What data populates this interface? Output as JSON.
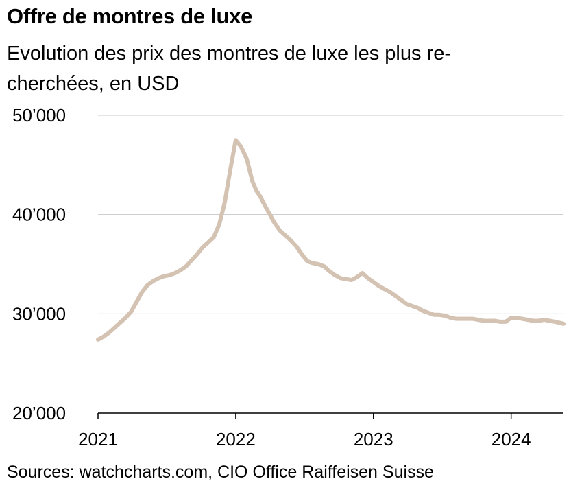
{
  "title": "Offre de montres de luxe",
  "subtitle": "Evolution des prix des montres de luxe les plus re-cherchées, en USD",
  "source": "Sources: watchcharts.com, CIO Office Raiffeisen Suisse",
  "colors": {
    "line": "#d4c3b3",
    "grid": "#c8c8c8",
    "axis": "#000000"
  },
  "chart_data": {
    "type": "line",
    "title": "Offre de montres de luxe",
    "subtitle": "Evolution des prix des montres de luxe les plus re-cherchées, en USD",
    "xlabel": "",
    "ylabel": "",
    "x_ticks": [
      "2021",
      "2022",
      "2023",
      "2024"
    ],
    "y_ticks": [
      "20’000",
      "30’000",
      "40’000",
      "50’000"
    ],
    "xlim": [
      2021.0,
      2024.38
    ],
    "ylim": [
      20000,
      50000
    ],
    "grid": "horizontal",
    "legend": "none",
    "series": [
      {
        "x": [
          2021.0,
          2021.04,
          2021.08,
          2021.12,
          2021.16,
          2021.2,
          2021.24,
          2021.28,
          2021.32,
          2021.36,
          2021.4,
          2021.44,
          2021.48,
          2021.52,
          2021.56,
          2021.6,
          2021.64,
          2021.68,
          2021.72,
          2021.76,
          2021.8,
          2021.84,
          2021.88,
          2021.92,
          2021.96,
          2022.0,
          2022.04,
          2022.08,
          2022.12,
          2022.15,
          2022.18,
          2022.2,
          2022.24,
          2022.28,
          2022.32,
          2022.36,
          2022.4,
          2022.44,
          2022.48,
          2022.52,
          2022.56,
          2022.6,
          2022.64,
          2022.68,
          2022.72,
          2022.76,
          2022.8,
          2022.84,
          2022.88,
          2022.92,
          2022.96,
          2023.0,
          2023.04,
          2023.08,
          2023.12,
          2023.16,
          2023.2,
          2023.24,
          2023.28,
          2023.32,
          2023.36,
          2023.4,
          2023.44,
          2023.48,
          2023.52,
          2023.56,
          2023.6,
          2023.64,
          2023.68,
          2023.72,
          2023.76,
          2023.8,
          2023.84,
          2023.88,
          2023.92,
          2023.96,
          2024.0,
          2024.04,
          2024.08,
          2024.12,
          2024.16,
          2024.2,
          2024.24,
          2024.28,
          2024.32,
          2024.38
        ],
        "y": [
          27400,
          27700,
          28100,
          28600,
          29100,
          29600,
          30200,
          31200,
          32200,
          32900,
          33300,
          33600,
          33800,
          33900,
          34100,
          34400,
          34800,
          35400,
          36000,
          36700,
          37200,
          37700,
          39000,
          41200,
          44500,
          47500,
          46800,
          45600,
          43400,
          42400,
          41800,
          41200,
          40200,
          39200,
          38400,
          37900,
          37400,
          36800,
          36000,
          35300,
          35100,
          35000,
          34800,
          34300,
          33900,
          33600,
          33500,
          33400,
          33700,
          34100,
          33600,
          33200,
          32800,
          32500,
          32200,
          31800,
          31400,
          31000,
          30800,
          30600,
          30300,
          30100,
          29900,
          29900,
          29800,
          29600,
          29500,
          29500,
          29500,
          29500,
          29400,
          29300,
          29300,
          29300,
          29200,
          29200,
          29600,
          29600,
          29500,
          29400,
          29300,
          29300,
          29400,
          29300,
          29200,
          29000
        ]
      }
    ]
  }
}
